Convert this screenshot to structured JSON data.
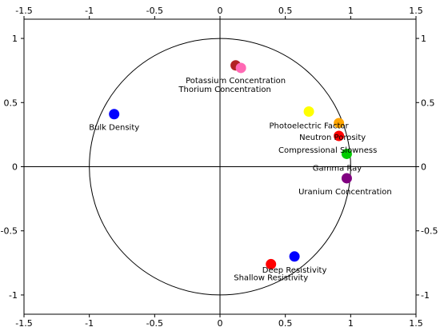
{
  "chart_data": {
    "type": "scatter",
    "xlim": [
      -1.5,
      1.5
    ],
    "ylim": [
      -1.15,
      1.15
    ],
    "xticks": [
      -1.5,
      -1,
      -0.5,
      0,
      0.5,
      1,
      1.5
    ],
    "xtick_labels": [
      "-1.5",
      "-1",
      "-0.5",
      "0",
      "0.5",
      "1",
      "1.5"
    ],
    "yticks": [
      -1,
      -0.5,
      0,
      0.5,
      1
    ],
    "ytick_labels": [
      "-1",
      "-0.5",
      "0",
      "0.5",
      "1"
    ],
    "axes_on_top_and_right": true,
    "unit_circle": true,
    "grid": false,
    "points": [
      {
        "label": "Potassium Concentration",
        "x": 0.12,
        "y": 0.79,
        "color": "#b22222"
      },
      {
        "label": "Thorium Concentration",
        "x": 0.16,
        "y": 0.77,
        "color": "#ff69b4"
      },
      {
        "label": "Bulk Density",
        "x": -0.81,
        "y": 0.41,
        "color": "#0000ff"
      },
      {
        "label": "Photoelectric Factor",
        "x": 0.68,
        "y": 0.43,
        "color": "#ffff00"
      },
      {
        "label": "Neutron Porosity",
        "x": 0.91,
        "y": 0.34,
        "color": "#ffa500"
      },
      {
        "label": "Compressional Slowness",
        "x": 0.91,
        "y": 0.24,
        "color": "#ff0000"
      },
      {
        "label": "Gamma Ray",
        "x": 0.97,
        "y": 0.1,
        "color": "#00cc00"
      },
      {
        "label": "Uranium Concentration",
        "x": 0.97,
        "y": -0.09,
        "color": "#800080"
      },
      {
        "label": "Deep Resistivity",
        "x": 0.57,
        "y": -0.7,
        "color": "#0000ff"
      },
      {
        "label": "Shallow Resistivity",
        "x": 0.39,
        "y": -0.76,
        "color": "#ff0000"
      }
    ]
  }
}
